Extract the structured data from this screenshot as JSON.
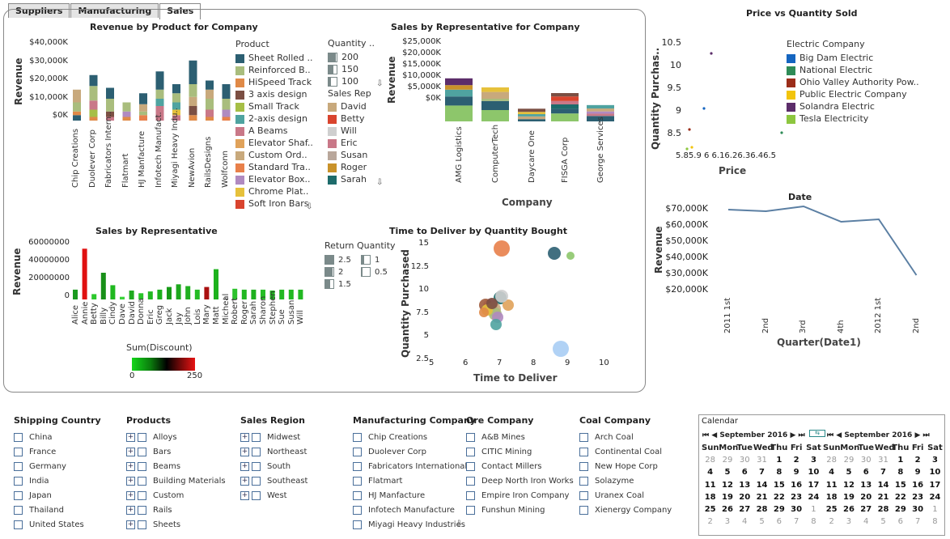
{
  "tabs": [
    {
      "label": "Suppliers"
    },
    {
      "label": "Manufacturing"
    },
    {
      "label": "Sales",
      "active": true
    }
  ],
  "colors": {
    "teal": "#2c5f72",
    "green": "#8dc66b",
    "red": "#d9442e",
    "brown": "#a15c3d",
    "olive": "#a6bf46",
    "tan": "#c8a97c"
  },
  "revenue_by_product": {
    "title": "Revenue by Product for Company",
    "ylabel": "Revenue",
    "yticks": [
      "$40,000K",
      "$30,000K",
      "$20,000K",
      "$10,000K",
      "$0K"
    ],
    "companies": [
      "Chip Creations",
      "Duolever Corp",
      "Fabricators Intern..",
      "Flatmart",
      "HJ Manfacture",
      "Infotech Manufact.",
      "Miyagi Heavy Indu..",
      "NewAvion",
      "RailsDesigns",
      "Wolfconn"
    ],
    "product_legend_title": "Product",
    "products": [
      {
        "name": "Sheet Rolled ..",
        "color": "#2c5f72"
      },
      {
        "name": "Reinforced B..",
        "color": "#a9bd7d"
      },
      {
        "name": "HiSpeed Track",
        "color": "#e08a47"
      },
      {
        "name": "3 axis design",
        "color": "#7b4f43"
      },
      {
        "name": "Small Track",
        "color": "#a6bf46"
      },
      {
        "name": "2-axis design",
        "color": "#4fa3a0"
      },
      {
        "name": "A Beams",
        "color": "#c97888"
      },
      {
        "name": "Elevator Shaf..",
        "color": "#e0a25a"
      },
      {
        "name": "Custom Ord..",
        "color": "#c8a97c"
      },
      {
        "name": "Standard Tra..",
        "color": "#e8804a"
      },
      {
        "name": "Elevator Box..",
        "color": "#b08ac0"
      },
      {
        "name": "Chrome Plat..",
        "color": "#e6c13b"
      },
      {
        "name": "Soft Iron Bars",
        "color": "#d9442e"
      }
    ],
    "quantity_legend_title": "Quantity ..",
    "quantity_legend": [
      "200",
      "150",
      "100"
    ],
    "rep_legend_title": "Sales Rep",
    "reps": [
      {
        "name": "David",
        "color": "#c8a97c"
      },
      {
        "name": "Betty",
        "color": "#d9442e"
      },
      {
        "name": "Will",
        "color": "#cfcfcf"
      },
      {
        "name": "Eric",
        "color": "#c97888"
      },
      {
        "name": "Susan",
        "color": "#b9a79b"
      },
      {
        "name": "Roger",
        "color": "#c9922a"
      },
      {
        "name": "Sarah",
        "color": "#1d6b6b"
      }
    ]
  },
  "sales_by_rep_company": {
    "title": "Sales by Representative for Company",
    "ylabel": "Revenue",
    "yticks": [
      "$25,000K",
      "$20,000K",
      "$15,000K",
      "$10,000K",
      "$5,000K",
      "$0K"
    ],
    "companies": [
      "AMG Logistics",
      "ComputerTech",
      "Daycare One",
      "FISGA Corp",
      "George Services"
    ],
    "xlabel": "Company"
  },
  "sales_by_rep": {
    "title": "Sales by Representative",
    "ylabel": "Revenue",
    "yticks": [
      "60000000",
      "40000000",
      "20000000",
      "0"
    ],
    "reps": [
      "Alice",
      "Annie",
      "Betty",
      "Billy",
      "Cindy",
      "Dave",
      "David",
      "Donna",
      "Eric",
      "Greg",
      "Jack",
      "Jay",
      "John",
      "Lois",
      "Mary",
      "Matt",
      "Micheal",
      "Robert",
      "Roger",
      "Sarah",
      "Sharon",
      "Stephen",
      "Sue",
      "Susan",
      "Will"
    ],
    "values": [
      11000000,
      57000000,
      6000000,
      30000000,
      16000000,
      3000000,
      10000000,
      7000000,
      9000000,
      11000000,
      14000000,
      17000000,
      15000000,
      11000000,
      14000000,
      34000000,
      0,
      12000000,
      11000000,
      11000000,
      11000000,
      10000000,
      11000000,
      11000000,
      11000000
    ],
    "return_legend_title": "Return Quantity",
    "return_legend": [
      "2.5",
      "2",
      "1.5",
      "1",
      "0.5"
    ],
    "color_legend_title": "Sum(Discount)",
    "color_min": "0",
    "color_max": "250"
  },
  "time_to_deliver": {
    "title": "Time to Deliver by Quantity Bought",
    "xlabel": "Time to Deliver",
    "ylabel": "Quantity Purchased",
    "xticks": [
      "5",
      "6",
      "7",
      "8",
      "9",
      "10"
    ],
    "yticks": [
      "15",
      "12.5",
      "10",
      "7.5",
      "5",
      "2.5"
    ]
  },
  "price_vs_qty": {
    "title": "Price vs Quantity Sold",
    "xlabel": "Price",
    "ylabel": "Quantity Purchas..",
    "xticks": "5.85.9 6 6.16.26.36.46.5",
    "yticks": [
      "10.5",
      "10",
      "9.5",
      "9",
      "8.5"
    ],
    "legend_title": "Electric Company",
    "legend": [
      {
        "name": "Big Dam Electric",
        "color": "#1565c0"
      },
      {
        "name": "National Electric",
        "color": "#2e8b57"
      },
      {
        "name": "Ohio Valley Authority Pow..",
        "color": "#9b2d1a"
      },
      {
        "name": "Public Electric Company",
        "color": "#f2c40c"
      },
      {
        "name": "Solandra Electric",
        "color": "#5c2d6a"
      },
      {
        "name": "Tesla Electricity",
        "color": "#8dc63f"
      }
    ]
  },
  "revenue_by_date": {
    "title": "Date",
    "ylabel": "Revenue",
    "xlabel": "Quarter(Date1)",
    "yticks": [
      "$70,000K",
      "$60,000K",
      "$50,000K",
      "$40,000K",
      "$30,000K",
      "$20,000K"
    ],
    "xticks": [
      "2011 1st",
      "2nd",
      "3rd",
      "4th",
      "2012 1st",
      "2nd"
    ],
    "values": [
      69000000,
      68000000,
      71000000,
      61500000,
      63000000,
      28500000
    ],
    "ylim": [
      20000000,
      70000000
    ]
  },
  "filters": {
    "shipping_country": {
      "title": "Shipping Country",
      "items": [
        "China",
        "France",
        "Germany",
        "India",
        "Japan",
        "Thailand",
        "United States"
      ]
    },
    "products": {
      "title": "Products",
      "items": [
        "Alloys",
        "Bars",
        "Beams",
        "Building Materials",
        "Custom",
        "Rails",
        "Sheets"
      ]
    },
    "sales_region": {
      "title": "Sales Region",
      "items": [
        "Midwest",
        "Northeast",
        "South",
        "Southeast",
        "West"
      ]
    },
    "manufacturing_company": {
      "title": "Manufacturing Company",
      "items": [
        "Chip Creations",
        "Duolever Corp",
        "Fabricators International",
        "Flatmart",
        "HJ Manfacture",
        "Infotech Manufacture",
        "Miyagi Heavy Industries"
      ]
    },
    "ore_company": {
      "title": "Ore Company",
      "items": [
        "A&B Mines",
        "CITIC Mining",
        "Contact Millers",
        "Deep North Iron Works",
        "Empire Iron Company",
        "Funshun Mining"
      ]
    },
    "coal_company": {
      "title": "Coal Company",
      "items": [
        "Arch Coal",
        "Continental Coal",
        "New Hope Corp",
        "Solazyme",
        "Uranex Coal",
        "Xienergy Company"
      ]
    }
  },
  "calendar": {
    "title": "Calendar",
    "left_month": "September 2016",
    "right_month": "September 2016",
    "weekdays": [
      "Sun",
      "Mon",
      "Tue",
      "Wed",
      "Thu",
      "Fri",
      "Sat"
    ],
    "weeks": [
      [
        "28",
        "29",
        "30",
        "31",
        "1",
        "2",
        "3"
      ],
      [
        "4",
        "5",
        "6",
        "7",
        "8",
        "9",
        "10"
      ],
      [
        "11",
        "12",
        "13",
        "14",
        "15",
        "16",
        "17"
      ],
      [
        "18",
        "19",
        "20",
        "21",
        "22",
        "23",
        "24"
      ],
      [
        "25",
        "26",
        "27",
        "28",
        "29",
        "30",
        "1"
      ],
      [
        "2",
        "3",
        "4",
        "5",
        "6",
        "7",
        "8"
      ]
    ]
  }
}
